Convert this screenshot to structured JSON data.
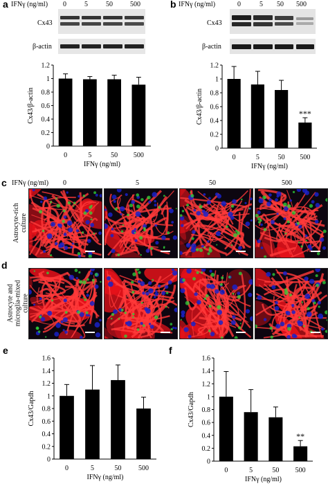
{
  "colors": {
    "bar": "#000000",
    "red": "#e8121a",
    "green": "#2fd43a",
    "blue": "#1a22c8",
    "blot_bg": "#e4e4e4",
    "band": "#2a2a2a"
  },
  "panel_a": {
    "label": "a",
    "treatment_header": "IFNγ (ng/ml)",
    "doses": [
      "0",
      "5",
      "50",
      "500"
    ],
    "blot_labels": [
      "Cx43",
      "β-actin"
    ],
    "chart_data": {
      "type": "bar",
      "categories": [
        "0",
        "5",
        "50",
        "500"
      ],
      "values": [
        1.0,
        0.99,
        0.99,
        0.91
      ],
      "errors": [
        0.07,
        0.04,
        0.06,
        0.11
      ],
      "ylabel": "Cx43/β-actin",
      "xlabel": "IFNγ (ng/ml)",
      "ylim": [
        0,
        1.2
      ],
      "yticks": [
        "0",
        "0.2",
        "0.4",
        "0.6",
        "0.8",
        "1",
        "1.2"
      ],
      "annotations": []
    }
  },
  "panel_b": {
    "label": "b",
    "treatment_header": "IFNγ (ng/ml)",
    "doses": [
      "0",
      "5",
      "50",
      "500"
    ],
    "blot_labels": [
      "Cx43",
      "β-actin"
    ],
    "chart_data": {
      "type": "bar",
      "categories": [
        "0",
        "5",
        "50",
        "500"
      ],
      "values": [
        1.0,
        0.92,
        0.84,
        0.37
      ],
      "errors": [
        0.18,
        0.19,
        0.14,
        0.07
      ],
      "ylabel": "Cx43/β-actin",
      "xlabel": "IFNγ (ng/ml)",
      "ylim": [
        0,
        1.2
      ],
      "yticks": [
        "0",
        "0.2",
        "0.4",
        "0.6",
        "0.8",
        "1",
        "1.2"
      ],
      "annotations": [
        {
          "category": "500",
          "text": "***"
        }
      ]
    }
  },
  "panel_c": {
    "label": "c",
    "treatment_header": "IFNγ (ng/ml)",
    "doses": [
      "0",
      "5",
      "50",
      "500"
    ],
    "row_label": [
      "Astrocyte-rich",
      "culture"
    ]
  },
  "panel_d": {
    "label": "d",
    "row_label": [
      "Astrocyte and",
      "microglia-mixed",
      "culture"
    ]
  },
  "panel_e": {
    "label": "e",
    "chart_data": {
      "type": "bar",
      "categories": [
        "0",
        "5",
        "50",
        "500"
      ],
      "values": [
        1.0,
        1.1,
        1.25,
        0.8
      ],
      "errors": [
        0.18,
        0.38,
        0.24,
        0.18
      ],
      "ylabel": "Cx43/Gapdh",
      "xlabel": "IFNγ (ng/ml)",
      "ylim": [
        0,
        1.6
      ],
      "yticks": [
        "0",
        "0.2",
        "0.4",
        "0.6",
        "0.8",
        "1",
        "1.2",
        "1.4",
        "1.6"
      ],
      "annotations": []
    }
  },
  "panel_f": {
    "label": "f",
    "chart_data": {
      "type": "bar",
      "categories": [
        "0",
        "5",
        "50",
        "500"
      ],
      "values": [
        1.0,
        0.76,
        0.68,
        0.23
      ],
      "errors": [
        0.39,
        0.35,
        0.16,
        0.09
      ],
      "ylabel": "Cx43/Gapdh",
      "xlabel": "IFNγ (ng/ml)",
      "ylim": [
        0,
        1.6
      ],
      "yticks": [
        "0",
        "0.2",
        "0.4",
        "0.6",
        "0.8",
        "1",
        "1.2",
        "1.4",
        "1.6"
      ],
      "annotations": [
        {
          "category": "500",
          "text": "**"
        }
      ]
    }
  }
}
